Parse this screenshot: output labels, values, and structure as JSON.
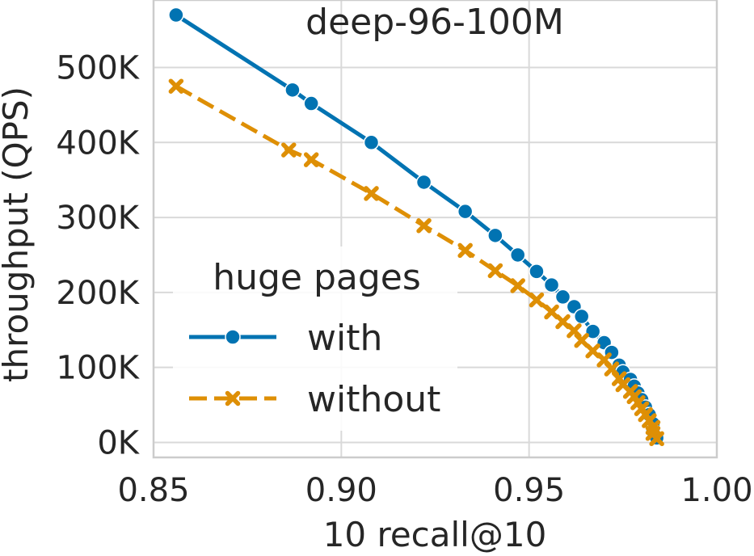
{
  "chart_data": {
    "type": "line",
    "title": "deep-96-100M",
    "xlabel": "10 recall@10",
    "ylabel": "throughput (QPS)",
    "xlim": [
      0.85,
      1.0
    ],
    "ylim": [
      -20000,
      590000
    ],
    "xticks": [
      0.85,
      0.9,
      0.95,
      1.0
    ],
    "xtick_labels": [
      "0.85",
      "0.90",
      "0.95",
      "1.00"
    ],
    "yticks": [
      0,
      100000,
      200000,
      300000,
      400000,
      500000
    ],
    "ytick_labels": [
      "0K",
      "100K",
      "200K",
      "300K",
      "400K",
      "500K"
    ],
    "grid": true,
    "legend": {
      "title": "huge pages",
      "placement": "center-left"
    },
    "series": [
      {
        "name": "with",
        "color": "#0173b2",
        "marker": "circle",
        "linestyle": "solid",
        "x": [
          0.856,
          0.887,
          0.892,
          0.908,
          0.922,
          0.933,
          0.941,
          0.947,
          0.952,
          0.956,
          0.959,
          0.962,
          0.964,
          0.967,
          0.97,
          0.972,
          0.974,
          0.975,
          0.977,
          0.978,
          0.979,
          0.98,
          0.981,
          0.982,
          0.983,
          0.983,
          0.984
        ],
        "y": [
          570000,
          470000,
          452000,
          400000,
          347000,
          308000,
          276000,
          250000,
          228000,
          210000,
          194000,
          181000,
          168000,
          148000,
          133000,
          120000,
          103000,
          94000,
          84000,
          75000,
          66000,
          57000,
          47000,
          37000,
          25000,
          15000,
          6000
        ]
      },
      {
        "name": "without",
        "color": "#de8f05",
        "marker": "x",
        "linestyle": "dashed",
        "x": [
          0.856,
          0.886,
          0.892,
          0.908,
          0.922,
          0.933,
          0.941,
          0.947,
          0.952,
          0.956,
          0.959,
          0.962,
          0.964,
          0.967,
          0.97,
          0.972,
          0.974,
          0.975,
          0.977,
          0.978,
          0.979,
          0.98,
          0.981,
          0.982,
          0.983,
          0.983,
          0.984
        ],
        "y": [
          475000,
          390000,
          377000,
          332000,
          289000,
          256000,
          229000,
          209000,
          190000,
          174000,
          161000,
          149000,
          136000,
          122000,
          110000,
          98000,
          85000,
          77000,
          68000,
          61000,
          53000,
          45000,
          37000,
          29000,
          20000,
          12000,
          5000
        ]
      }
    ]
  }
}
